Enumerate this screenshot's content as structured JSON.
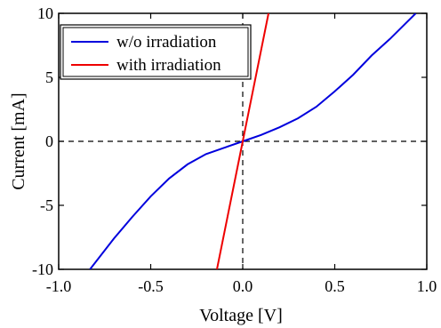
{
  "chart_data": {
    "type": "line",
    "xlabel": "Voltage [V]",
    "ylabel": "Current [mA]",
    "xlim": [
      -1.0,
      1.0
    ],
    "ylim": [
      -10,
      10
    ],
    "x_ticks": [
      -1.0,
      -0.5,
      0.0,
      0.5,
      1.0
    ],
    "x_tick_labels": [
      "-1.0",
      "-0.5",
      "0.0",
      "0.5",
      "1.0"
    ],
    "y_ticks": [
      -10,
      -5,
      0,
      5,
      10
    ],
    "y_tick_labels": [
      "-10",
      "-5",
      "0",
      "5",
      "10"
    ],
    "grid": false,
    "reference_lines": [
      "x=0 dashed",
      "y=0 dashed"
    ],
    "legend": "top-left",
    "series": [
      {
        "name": "w/o irradiation",
        "color": "#0000dd",
        "x": [
          -0.83,
          -0.7,
          -0.6,
          -0.5,
          -0.4,
          -0.3,
          -0.2,
          -0.1,
          0.0,
          0.1,
          0.2,
          0.3,
          0.4,
          0.5,
          0.6,
          0.7,
          0.8,
          0.94
        ],
        "y": [
          -10.0,
          -7.6,
          -5.9,
          -4.3,
          -2.9,
          -1.8,
          -1.0,
          -0.5,
          0.0,
          0.5,
          1.1,
          1.8,
          2.7,
          3.9,
          5.2,
          6.7,
          8.0,
          10.0
        ]
      },
      {
        "name": "with irradiation",
        "color": "#ee0000",
        "x": [
          -0.14,
          0.0,
          0.14
        ],
        "y": [
          -10.0,
          0.0,
          10.0
        ]
      }
    ]
  }
}
